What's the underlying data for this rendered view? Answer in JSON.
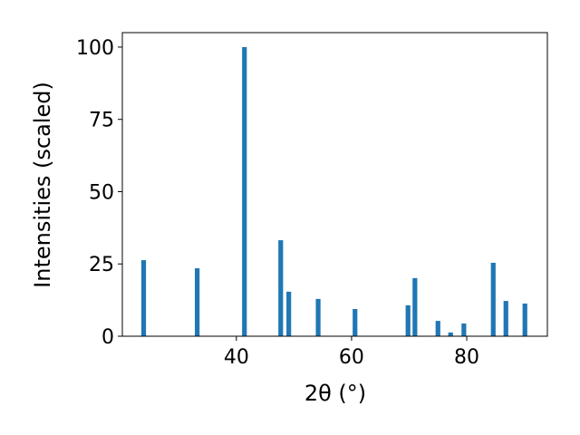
{
  "chart_data": {
    "type": "bar",
    "xlabel": "2θ (°)",
    "ylabel": "Intensities (scaled)",
    "x": [
      23.9,
      33.2,
      41.4,
      47.7,
      49.1,
      54.2,
      60.6,
      69.8,
      71.0,
      75.0,
      77.2,
      79.5,
      84.6,
      86.8,
      90.1
    ],
    "values": [
      26.3,
      23.5,
      100,
      33.2,
      15.4,
      12.9,
      9.4,
      10.7,
      20.1,
      5.3,
      1.3,
      4.4,
      25.4,
      12.2,
      11.3
    ],
    "color": "#1f77b4",
    "xlim": [
      20.2,
      94.0
    ],
    "xticks": [
      40,
      60,
      80
    ],
    "ylim": [
      0,
      105
    ],
    "yticks": [
      0,
      25,
      50,
      75,
      100
    ]
  }
}
